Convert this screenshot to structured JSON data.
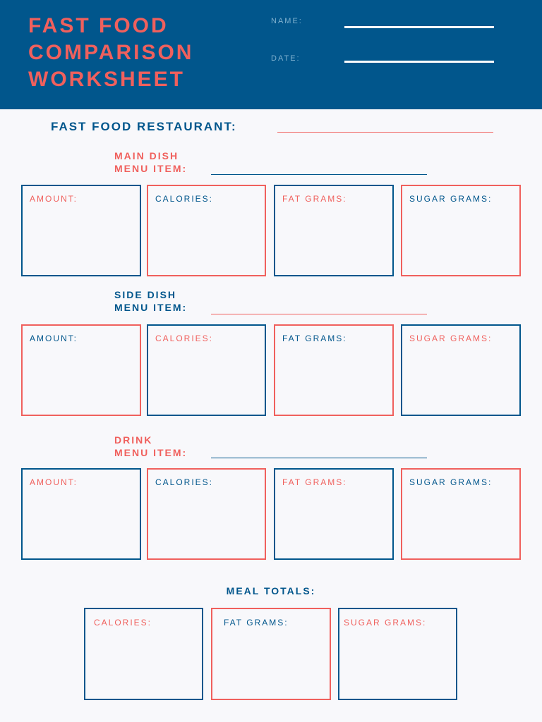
{
  "header": {
    "title_lines": [
      "FAST FOOD",
      "COMPARISON",
      "WORKSHEET"
    ],
    "name_label": "NAME:",
    "date_label": "DATE:"
  },
  "restaurant_label": "FAST FOOD RESTAURANT:",
  "sections": [
    {
      "line1": "MAIN DISH",
      "line2": "MENU ITEM:",
      "boxes": [
        "AMOUNT:",
        "CALORIES:",
        "FAT GRAMS:",
        "SUGAR GRAMS:"
      ]
    },
    {
      "line1": "SIDE DISH",
      "line2": "MENU ITEM:",
      "boxes": [
        "AMOUNT:",
        "CALORIES:",
        "FAT GRAMS:",
        "SUGAR GRAMS:"
      ]
    },
    {
      "line1": "DRINK",
      "line2": "MENU ITEM:",
      "boxes": [
        "AMOUNT:",
        "CALORIES:",
        "FAT GRAMS:",
        "SUGAR GRAMS:"
      ]
    }
  ],
  "totals": {
    "title": "MEAL TOTALS:",
    "boxes": [
      "CALORIES:",
      "FAT GRAMS:",
      "SUGAR GRAMS:"
    ]
  },
  "colors": {
    "navy": "#01568c",
    "coral": "#f0605d",
    "page": "#f8f8fb"
  }
}
